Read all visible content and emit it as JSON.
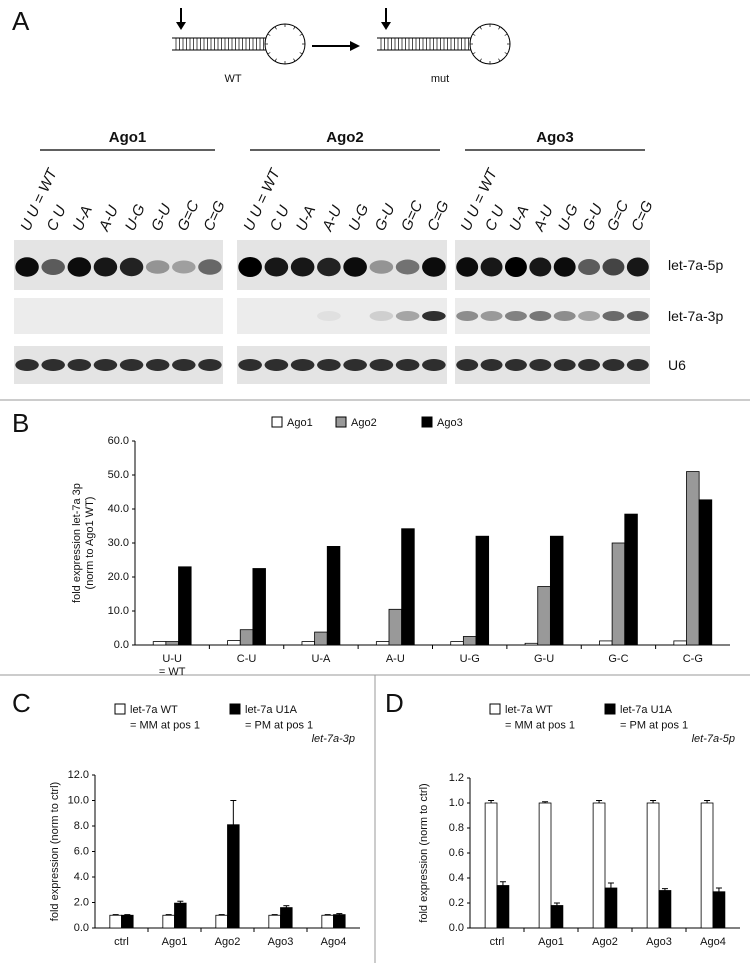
{
  "panel_a": {
    "label": "A",
    "hairpin_labels": [
      "WT",
      "mut"
    ],
    "blot_groups": [
      "Ago1",
      "Ago2",
      "Ago3"
    ],
    "lanes": [
      "U U = WT",
      "C U",
      "U-A",
      "A-U",
      "U-G",
      "G-U",
      "G=C",
      "C=G"
    ],
    "rows": [
      "let-7a-5p",
      "let-7a-3p",
      "U6"
    ]
  },
  "chart_data": [
    {
      "panel_label": "B",
      "type": "bar",
      "ylabel": "fold expression let-7a 3p\n(norm to Ago1 WT)",
      "categories": [
        "U-U\n= WT",
        "C-U",
        "U-A",
        "A-U",
        "U-G",
        "G-U",
        "G-C",
        "C-G"
      ],
      "series": [
        {
          "name": "Ago1",
          "color": "#ffffff",
          "values": [
            1,
            1.3,
            1,
            1,
            1,
            0.5,
            1.2,
            1.2
          ]
        },
        {
          "name": "Ago2",
          "color": "#999999",
          "values": [
            1,
            4.5,
            3.8,
            10.5,
            2.5,
            17.2,
            30,
            51
          ]
        },
        {
          "name": "Ago3",
          "color": "#000000",
          "values": [
            23,
            22.5,
            29,
            34.2,
            32,
            32,
            38.5,
            42.7
          ]
        }
      ],
      "ylim": [
        0,
        60
      ],
      "yticks": [
        {
          "value": 0,
          "label": "0.0"
        },
        {
          "value": 10,
          "label": "10.0"
        },
        {
          "value": 20,
          "label": "20.0"
        },
        {
          "value": 30,
          "label": "30.0"
        },
        {
          "value": 40,
          "label": "40.0"
        },
        {
          "value": 50,
          "label": "50.0"
        },
        {
          "value": 60,
          "label": "60.0"
        }
      ]
    },
    {
      "panel_label": "C",
      "type": "bar",
      "annotation": "let-7a-3p",
      "ylabel": "fold expression (norm to ctrl)",
      "categories": [
        "ctrl",
        "Ago1",
        "Ago2",
        "Ago3",
        "Ago4"
      ],
      "series": [
        {
          "name": "let-7a WT\n= MM at pos 1",
          "color": "#ffffff",
          "values": [
            1,
            1,
            1,
            1,
            1
          ],
          "errors": [
            0.05,
            0.05,
            0.05,
            0.05,
            0.05
          ]
        },
        {
          "name": "let-7a U1A\n= PM at pos 1",
          "color": "#000000",
          "values": [
            1,
            1.95,
            8.1,
            1.6,
            1.05
          ],
          "errors": [
            0.05,
            0.15,
            1.9,
            0.15,
            0.08
          ]
        }
      ],
      "ylim": [
        0,
        12
      ],
      "yticks": [
        {
          "value": 0,
          "label": "0.0"
        },
        {
          "value": 2,
          "label": "2.0"
        },
        {
          "value": 4,
          "label": "4.0"
        },
        {
          "value": 6,
          "label": "6.0"
        },
        {
          "value": 8,
          "label": "8.0"
        },
        {
          "value": 10,
          "label": "10.0"
        },
        {
          "value": 12,
          "label": "12.0"
        }
      ]
    },
    {
      "panel_label": "D",
      "type": "bar",
      "annotation": "let-7a-5p",
      "ylabel": "fold expression (norm to ctrl)",
      "categories": [
        "ctrl",
        "Ago1",
        "Ago2",
        "Ago3",
        "Ago4"
      ],
      "series": [
        {
          "name": "let-7a WT\n= MM at pos 1",
          "color": "#ffffff",
          "values": [
            1,
            1,
            1,
            1,
            1
          ],
          "errors": [
            0.02,
            0.01,
            0.02,
            0.02,
            0.02
          ]
        },
        {
          "name": "let-7a U1A\n= PM at pos 1",
          "color": "#000000",
          "values": [
            0.34,
            0.18,
            0.32,
            0.3,
            0.29
          ],
          "errors": [
            0.03,
            0.02,
            0.04,
            0.015,
            0.03
          ]
        }
      ],
      "ylim": [
        0,
        1.2
      ],
      "yticks": [
        {
          "value": 0,
          "label": "0.0"
        },
        0.2,
        0.4,
        0.6,
        0.8,
        {
          "value": 1,
          "label": "1.0"
        },
        1.2
      ]
    }
  ]
}
